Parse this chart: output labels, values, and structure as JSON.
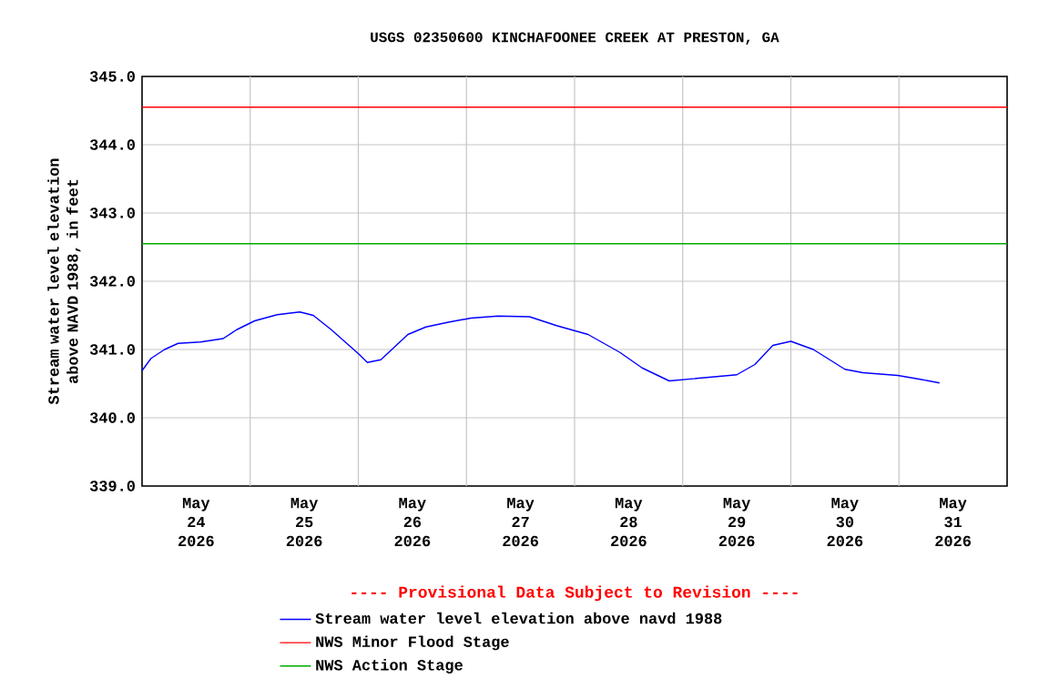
{
  "chart_data": {
    "type": "line",
    "title": "USGS 02350600 KINCHAFOONEE CREEK AT PRESTON, GA",
    "ylabel": "Stream water level elevation above NAVD 1988, in feet",
    "x": [
      "2026-05-24T00:00",
      "2026-05-24T02:00",
      "2026-05-24T05:00",
      "2026-05-24T08:00",
      "2026-05-24T13:00",
      "2026-05-24T18:00",
      "2026-05-24T21:00",
      "2026-05-25T01:00",
      "2026-05-25T06:00",
      "2026-05-25T11:00",
      "2026-05-25T14:00",
      "2026-05-25T18:00",
      "2026-05-26T00:00",
      "2026-05-26T02:00",
      "2026-05-26T05:00",
      "2026-05-26T11:00",
      "2026-05-26T15:00",
      "2026-05-26T20:00",
      "2026-05-27T01:00",
      "2026-05-27T07:00",
      "2026-05-27T14:00",
      "2026-05-27T20:00",
      "2026-05-28T03:00",
      "2026-05-28T10:00",
      "2026-05-28T15:00",
      "2026-05-28T21:00",
      "2026-05-29T02:00",
      "2026-05-29T07:00",
      "2026-05-29T12:00",
      "2026-05-29T16:00",
      "2026-05-29T20:00",
      "2026-05-30T00:00",
      "2026-05-30T05:00",
      "2026-05-30T12:00",
      "2026-05-30T16:00",
      "2026-05-30T23:45",
      "2026-05-31T05:00",
      "2026-05-31T09:00"
    ],
    "series": [
      {
        "name": "Stream water level elevation above navd 1988",
        "color": "#0000ff",
        "values": [
          340.69,
          340.87,
          341.0,
          341.09,
          341.11,
          341.16,
          341.29,
          341.42,
          341.51,
          341.55,
          341.5,
          341.29,
          340.94,
          340.81,
          340.85,
          341.22,
          341.33,
          341.4,
          341.46,
          341.49,
          341.48,
          341.35,
          341.22,
          340.96,
          340.73,
          340.54,
          340.57,
          340.6,
          340.63,
          340.78,
          341.06,
          341.12,
          341.0,
          340.71,
          340.66,
          340.62,
          340.56,
          340.51
        ]
      }
    ],
    "ref_lines": [
      {
        "axis": "y",
        "value": 344.55,
        "label": "NWS Minor Flood Stage",
        "color": "#ff0000"
      },
      {
        "axis": "y",
        "value": 342.55,
        "label": "NWS Action Stage",
        "color": "#00aa00"
      }
    ],
    "annotations": [
      "---- Provisional Data Subject to Revision ----"
    ],
    "xlim": [
      "2026-05-24T00:00",
      "2026-06-01T00:00"
    ],
    "xticks": [
      {
        "value": "2026-05-24T12:00",
        "label": "May 24 2026"
      },
      {
        "value": "2026-05-25T00:00",
        "label": null
      },
      {
        "value": "2026-05-25T12:00",
        "label": "May 25 2026"
      },
      {
        "value": "2026-05-26T00:00",
        "label": null
      },
      {
        "value": "2026-05-26T12:00",
        "label": "May 26 2026"
      },
      {
        "value": "2026-05-27T00:00",
        "label": null
      },
      {
        "value": "2026-05-27T12:00",
        "label": "May 27 2026"
      },
      {
        "value": "2026-05-28T00:00",
        "label": null
      },
      {
        "value": "2026-05-28T12:00",
        "label": "May 28 2026"
      },
      {
        "value": "2026-05-29T00:00",
        "label": null
      },
      {
        "value": "2026-05-29T12:00",
        "label": "May 29 2026"
      },
      {
        "value": "2026-05-30T00:00",
        "label": null
      },
      {
        "value": "2026-05-30T12:00",
        "label": "May 30 2026"
      },
      {
        "value": "2026-05-31T00:00",
        "label": null
      },
      {
        "value": "2026-05-31T12:00",
        "label": "May 31 2026"
      }
    ],
    "ylim": [
      339,
      345
    ],
    "yticks": [
      {
        "value": 339,
        "label": "339.0"
      },
      {
        "value": 340,
        "label": "340.0"
      },
      {
        "value": 341,
        "label": "341.0"
      },
      {
        "value": 342,
        "label": "342.0"
      },
      {
        "value": 343,
        "label": "343.0"
      },
      {
        "value": 344,
        "label": "344.0"
      },
      {
        "value": 345,
        "label": "345.0"
      }
    ],
    "grid": true,
    "legend": "bottom",
    "marker": "none",
    "line_style": "solid"
  }
}
